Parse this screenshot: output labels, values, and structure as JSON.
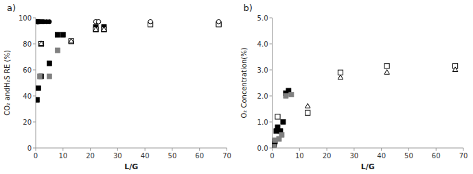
{
  "chart_data": [
    {
      "type": "scatter",
      "title": "a)",
      "xlabel": "L/G",
      "ylabel": "CO₂ andH₂S RE (%)",
      "xlim": [
        0,
        70
      ],
      "ylim": [
        0,
        100
      ],
      "xticks": [
        0,
        10,
        20,
        30,
        40,
        50,
        60,
        70
      ],
      "yticks": [
        0,
        20,
        40,
        60,
        80,
        100
      ],
      "grid": false,
      "series": [
        {
          "marker": "circle",
          "color": "#000000",
          "x": [
            0.3,
            0.5,
            0.6,
            0.7,
            0.8,
            0.9,
            1.0,
            1.2,
            1.5,
            2.0,
            2.5,
            3.0,
            4.0,
            5.0
          ],
          "values": [
            97,
            97,
            97,
            97,
            97,
            97,
            97,
            97,
            97,
            97,
            97,
            97,
            97,
            97
          ]
        },
        {
          "marker": "circle",
          "color": "#808080",
          "x": [
            22,
            23
          ],
          "values": [
            97,
            97
          ]
        },
        {
          "marker": "open-circle",
          "color": "#000000",
          "x": [
            22,
            23,
            42,
            67
          ],
          "values": [
            97,
            97,
            97,
            97
          ]
        },
        {
          "marker": "square",
          "color": "#000000",
          "x": [
            0.5,
            1.0,
            2.0,
            5.0,
            8.0,
            10.0,
            22.0,
            25.0,
            42.0,
            67.0
          ],
          "values": [
            37,
            46,
            55,
            65,
            87,
            87,
            93,
            93,
            95,
            95
          ]
        },
        {
          "marker": "square",
          "color": "#808080",
          "x": [
            1.5,
            5.0,
            8.0,
            13.0,
            22.0,
            25.0
          ],
          "values": [
            55,
            55,
            75,
            82,
            91,
            91
          ]
        },
        {
          "marker": "open-square",
          "color": "#000000",
          "x": [
            2.0,
            13.0,
            22.0,
            25.0,
            42.0,
            67.0
          ],
          "values": [
            80,
            82,
            91,
            91,
            95,
            95
          ]
        },
        {
          "marker": "open-triangle",
          "color": "#000000",
          "x": [
            2.0,
            13.0,
            22.0,
            25.0
          ],
          "values": [
            80,
            82,
            91,
            91
          ]
        }
      ]
    },
    {
      "type": "scatter",
      "title": "b)",
      "xlabel": "L/G",
      "ylabel": "O₂ Concentration(%)",
      "xlim": [
        0,
        70
      ],
      "ylim": [
        0,
        5.0
      ],
      "xticks": [
        0,
        10,
        20,
        30,
        40,
        50,
        60,
        70
      ],
      "yticks": [
        {
          "value": 0.0,
          "label": "0.0"
        },
        {
          "value": 1.0,
          "label": "1.0"
        },
        {
          "value": 2.0,
          "label": "2.0"
        },
        {
          "value": 3.0,
          "label": "3.0"
        },
        {
          "value": 4.0,
          "label": "4.0"
        },
        {
          "value": 5.0,
          "label": "5.0"
        }
      ],
      "grid": false,
      "series": [
        {
          "marker": "square",
          "color": "#000000",
          "x": [
            0.3,
            0.5,
            0.7,
            1.0,
            1.5,
            2.0,
            3.0,
            4.0,
            5.0,
            6.0
          ],
          "values": [
            0.05,
            0.1,
            0.15,
            0.25,
            0.65,
            0.8,
            0.65,
            1.0,
            2.1,
            2.2
          ]
        },
        {
          "marker": "square",
          "color": "#808080",
          "x": [
            0.5,
            1.0,
            2.5,
            3.5,
            5.0,
            7.0
          ],
          "values": [
            0.05,
            0.3,
            0.35,
            0.5,
            2.0,
            2.05
          ]
        },
        {
          "marker": "open-square",
          "color": "#000000",
          "x": [
            2.0,
            13.0,
            25.0,
            42.0,
            67.0
          ],
          "values": [
            1.2,
            1.35,
            2.9,
            3.15,
            3.15
          ]
        },
        {
          "marker": "open-triangle",
          "color": "#000000",
          "x": [
            13.0,
            25.0,
            42.0,
            67.0
          ],
          "values": [
            1.6,
            2.7,
            2.9,
            3.0
          ]
        }
      ]
    }
  ]
}
